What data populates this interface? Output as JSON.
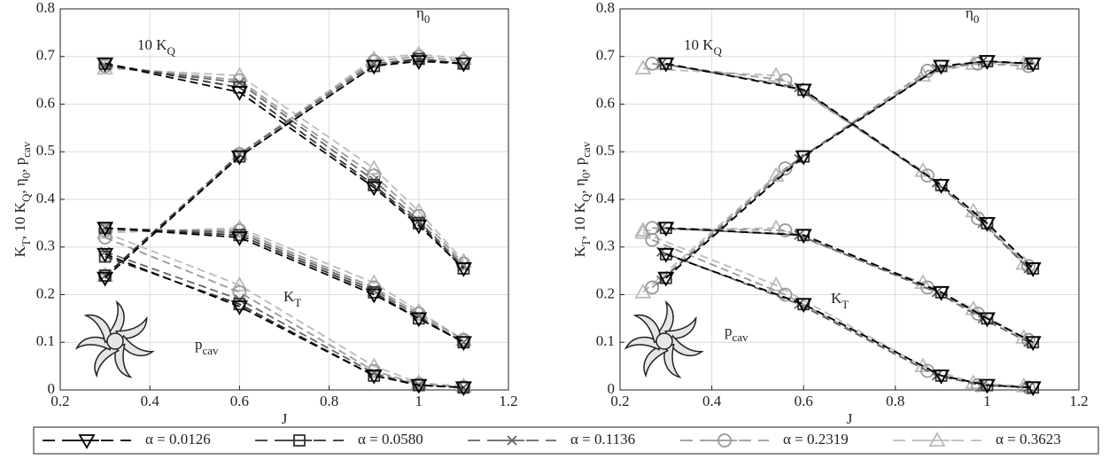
{
  "chart_data": {
    "type": "line",
    "xlabel": "J",
    "ylabel": [
      "K",
      {
        "sub": "T"
      },
      ", 10 K",
      {
        "sub": "Q"
      },
      ", η",
      {
        "sub": "0"
      },
      ", p",
      {
        "sub": "cav"
      }
    ],
    "xlim": [
      0.2,
      1.2
    ],
    "ylim": [
      0,
      0.8
    ],
    "xticks": [
      0.2,
      0.4,
      0.6,
      0.8,
      1,
      1.2
    ],
    "yticks": [
      0,
      0.1,
      0.2,
      0.3,
      0.4,
      0.5,
      0.6,
      0.7,
      0.8
    ],
    "grid": true,
    "annotations": [
      {
        "text": "10 K",
        "sub": "Q"
      },
      {
        "text": "η",
        "sub": "0"
      },
      {
        "text": "K",
        "sub": "T"
      },
      {
        "text": "p",
        "sub": "cav"
      }
    ],
    "series": [
      {
        "name": "α = 0.0126",
        "color": "#000000",
        "marker": "triangle-down",
        "panels": [
          {
            "x": [
              0.3,
              0.6,
              0.9,
              1,
              1.1
            ],
            "kt": [
              0.34,
              0.32,
              0.2,
              0.15,
              0.1
            ],
            "kq10": [
              0.685,
              0.625,
              0.425,
              0.345,
              0.255
            ],
            "eta0": [
              0.235,
              0.49,
              0.68,
              0.69,
              0.685
            ],
            "pcav": [
              0.285,
              0.175,
              0.03,
              0.01,
              0.005
            ]
          },
          {
            "x": [
              0.3,
              0.6,
              0.9,
              1,
              1.1
            ],
            "kt": [
              0.34,
              0.325,
              0.205,
              0.15,
              0.1
            ],
            "kq10": [
              0.685,
              0.63,
              0.43,
              0.35,
              0.255
            ],
            "eta0": [
              0.235,
              0.49,
              0.68,
              0.69,
              0.685
            ],
            "pcav": [
              0.285,
              0.18,
              0.03,
              0.01,
              0.005
            ]
          }
        ]
      },
      {
        "name": "α = 0.0580",
        "color": "#333333",
        "marker": "square",
        "panels": [
          {
            "x": [
              0.3,
              0.6,
              0.9,
              1,
              1.1
            ],
            "kt": [
              0.34,
              0.325,
              0.205,
              0.15,
              0.1
            ],
            "kq10": [
              0.685,
              0.635,
              0.43,
              0.35,
              0.255
            ],
            "eta0": [
              0.24,
              0.49,
              0.68,
              0.695,
              0.685
            ],
            "pcav": [
              0.28,
              0.18,
              0.03,
              0.01,
              0.005
            ]
          },
          {
            "x": [
              0.3,
              0.6,
              0.9,
              1,
              1.1
            ],
            "kt": [
              0.34,
              0.325,
              0.205,
              0.15,
              0.1
            ],
            "kq10": [
              0.685,
              0.63,
              0.43,
              0.35,
              0.255
            ],
            "eta0": [
              0.235,
              0.49,
              0.68,
              0.69,
              0.685
            ],
            "pcav": [
              0.285,
              0.18,
              0.03,
              0.01,
              0.005
            ]
          }
        ]
      },
      {
        "name": "α = 0.1136",
        "color": "#666666",
        "marker": "x",
        "panels": [
          {
            "x": [
              0.3,
              0.6,
              0.9,
              1,
              1.1
            ],
            "kt": [
              0.34,
              0.33,
              0.21,
              0.155,
              0.1
            ],
            "kq10": [
              0.68,
              0.645,
              0.44,
              0.355,
              0.26
            ],
            "eta0": [
              0.24,
              0.495,
              0.685,
              0.695,
              0.685
            ],
            "pcav": [
              0.29,
              0.19,
              0.035,
              0.01,
              0.005
            ]
          },
          {
            "x": [
              0.29,
              0.59,
              0.89,
              0.99,
              1.09
            ],
            "kt": [
              0.34,
              0.325,
              0.205,
              0.15,
              0.1
            ],
            "kq10": [
              0.685,
              0.635,
              0.435,
              0.35,
              0.255
            ],
            "eta0": [
              0.23,
              0.485,
              0.675,
              0.69,
              0.685
            ],
            "pcav": [
              0.29,
              0.18,
              0.03,
              0.01,
              0.005
            ]
          }
        ]
      },
      {
        "name": "α = 0.2319",
        "color": "#999999",
        "marker": "circle",
        "panels": [
          {
            "x": [
              0.3,
              0.6,
              0.9,
              1,
              1.1
            ],
            "kt": [
              0.335,
              0.335,
              0.215,
              0.16,
              0.105
            ],
            "kq10": [
              0.68,
              0.65,
              0.45,
              0.365,
              0.265
            ],
            "eta0": [
              0.24,
              0.495,
              0.69,
              0.7,
              0.69
            ],
            "pcav": [
              0.32,
              0.205,
              0.04,
              0.012,
              0.006
            ]
          },
          {
            "x": [
              0.27,
              0.56,
              0.87,
              0.98,
              1.09
            ],
            "kt": [
              0.34,
              0.335,
              0.215,
              0.16,
              0.105
            ],
            "kq10": [
              0.685,
              0.65,
              0.45,
              0.36,
              0.26
            ],
            "eta0": [
              0.215,
              0.465,
              0.67,
              0.685,
              0.68
            ],
            "pcav": [
              0.315,
              0.2,
              0.04,
              0.01,
              0.005
            ]
          }
        ]
      },
      {
        "name": "α = 0.3623",
        "color": "#bbbbbb",
        "marker": "triangle-up",
        "panels": [
          {
            "x": [
              0.3,
              0.6,
              0.9,
              1,
              1.1
            ],
            "kt": [
              0.33,
              0.34,
              0.225,
              0.165,
              0.105
            ],
            "kq10": [
              0.675,
              0.66,
              0.465,
              0.375,
              0.27
            ],
            "eta0": [
              0.24,
              0.495,
              0.695,
              0.705,
              0.695
            ],
            "pcav": [
              0.33,
              0.22,
              0.05,
              0.015,
              0.008
            ]
          },
          {
            "x": [
              0.25,
              0.54,
              0.86,
              0.97,
              1.08
            ],
            "kt": [
              0.335,
              0.34,
              0.225,
              0.17,
              0.11
            ],
            "kq10": [
              0.675,
              0.66,
              0.46,
              0.375,
              0.265
            ],
            "eta0": [
              0.205,
              0.45,
              0.66,
              0.685,
              0.685
            ],
            "pcav": [
              0.33,
              0.22,
              0.05,
              0.015,
              0.008
            ]
          }
        ]
      }
    ]
  }
}
